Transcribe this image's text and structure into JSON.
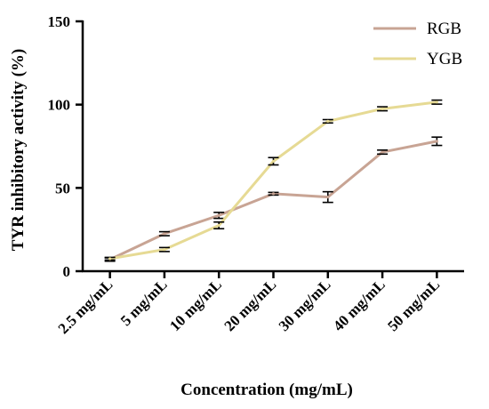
{
  "chart_data": {
    "type": "line",
    "xlabel": "Concentration (mg/mL)",
    "ylabel": "TYR inhibitory activity (%)",
    "categories": [
      "2.5 mg/mL",
      "5 mg/mL",
      "10 mg/mL",
      "20 mg/mL",
      "30 mg/mL",
      "40 mg/mL",
      "50 mg/mL"
    ],
    "ylim": [
      0,
      150
    ],
    "yticks": [
      "0",
      "50",
      "100",
      "150"
    ],
    "grid": false,
    "legend_position": "top-right",
    "series": [
      {
        "name": "RGB",
        "color": "#c8a494",
        "values": [
          7,
          22.5,
          33.5,
          46.5,
          44.5,
          71.5,
          78
        ],
        "errors": [
          1,
          1.2,
          1.8,
          0.8,
          3.2,
          1.2,
          2.5
        ]
      },
      {
        "name": "YGB",
        "color": "#e6da94",
        "values": [
          7.5,
          13,
          27.5,
          66,
          90,
          97.5,
          101.5
        ],
        "errors": [
          0.8,
          1.2,
          2,
          2.2,
          1,
          1.2,
          1.2
        ]
      }
    ]
  }
}
